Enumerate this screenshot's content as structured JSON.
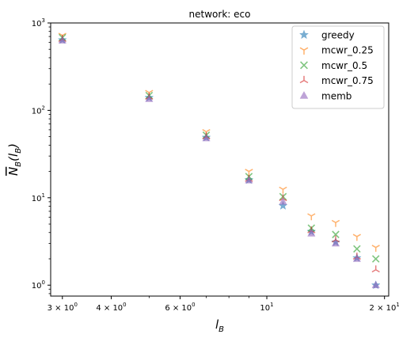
{
  "chart_data": {
    "type": "scatter",
    "title": "network: eco",
    "xlabel": "l",
    "xlabel_sub": "B",
    "ylabel": "N",
    "ylabel_sub": "B",
    "ylabel_arg": "(l",
    "ylabel_arg_sub": "B",
    "ylabel_close": ")",
    "x_scale": "log",
    "y_scale": "log",
    "xlim": [
      2.8,
      20.5
    ],
    "ylim": [
      0.75,
      1000
    ],
    "grid": false,
    "legend_position": "top-right",
    "x_ticks_major": [
      {
        "value": 3,
        "mant": "3 × 10",
        "exp": "0"
      },
      {
        "value": 4,
        "mant": "4 × 10",
        "exp": "0"
      },
      {
        "value": 6,
        "mant": "6 × 10",
        "exp": "0"
      },
      {
        "value": 10,
        "mant": "10",
        "exp": "1"
      },
      {
        "value": 20,
        "mant": "2 × 10",
        "exp": "1"
      }
    ],
    "x_ticks_minor": [
      5,
      7,
      8,
      9
    ],
    "y_ticks_major": [
      {
        "value": 1,
        "mant": "10",
        "exp": "0"
      },
      {
        "value": 10,
        "mant": "10",
        "exp": "1"
      },
      {
        "value": 100,
        "mant": "10",
        "exp": "2"
      },
      {
        "value": 1000,
        "mant": "10",
        "exp": "3"
      }
    ],
    "series": [
      {
        "name": "greedy",
        "marker": "star",
        "color": "#1f77b4",
        "x": [
          3,
          5,
          7,
          9,
          11,
          13,
          15,
          17,
          19
        ],
        "y": [
          640,
          140,
          49,
          16,
          8.1,
          4.1,
          3.1,
          2.05,
          1.0
        ]
      },
      {
        "name": "mcwr_0.25",
        "marker": "tri",
        "color": "#ff7f0e",
        "x": [
          3,
          5,
          7,
          9,
          11,
          13,
          15,
          17,
          19
        ],
        "y": [
          720,
          160,
          57,
          20,
          12.5,
          6.2,
          5.2,
          3.6,
          2.7
        ]
      },
      {
        "name": "mcwr_0.5",
        "marker": "x",
        "color": "#2ca02c",
        "x": [
          3,
          5,
          7,
          9,
          11,
          13,
          15,
          17,
          19
        ],
        "y": [
          680,
          148,
          52,
          17.5,
          10.3,
          4.5,
          3.8,
          2.6,
          2.0
        ]
      },
      {
        "name": "mcwr_0.75",
        "marker": "tri_down",
        "color": "#d62728",
        "x": [
          3,
          5,
          7,
          9,
          11,
          13,
          15,
          17,
          19
        ],
        "y": [
          650,
          142,
          50,
          16.3,
          9.8,
          4.2,
          3.3,
          2.1,
          1.5
        ]
      },
      {
        "name": "memb",
        "marker": "triangle",
        "color": "#9467bd",
        "x": [
          3,
          5,
          7,
          9,
          11,
          13,
          15,
          17,
          19
        ],
        "y": [
          630,
          135,
          48,
          15.8,
          9.0,
          3.9,
          3.0,
          2.0,
          1.0
        ]
      }
    ]
  }
}
